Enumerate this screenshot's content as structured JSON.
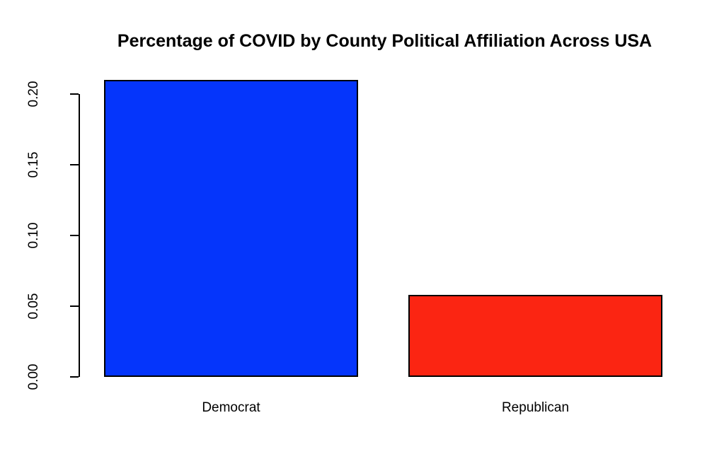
{
  "chart_data": {
    "type": "bar",
    "title": "Percentage of COVID by County Political Affiliation Across USA",
    "categories": [
      "Democrat",
      "Republican"
    ],
    "values": [
      0.21,
      0.058
    ],
    "bar_colors": [
      "#0535fb",
      "#fb2512"
    ],
    "bar_border_color": "#000000",
    "yticks": [
      0.0,
      0.05,
      0.1,
      0.15,
      0.2
    ],
    "ytick_labels": [
      "0.00",
      "0.05",
      "0.10",
      "0.15",
      "0.20"
    ],
    "ylim": [
      0,
      0.21
    ],
    "xlabel": "",
    "ylabel": "",
    "grid": false,
    "legend": "none",
    "background_color": "#ffffff",
    "axis_color": "#000000",
    "title_color": "#000000"
  }
}
